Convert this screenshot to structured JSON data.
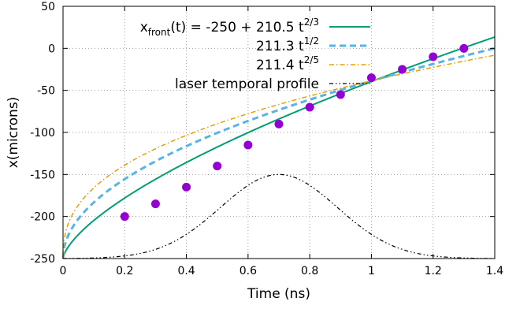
{
  "chart_data": {
    "type": "line",
    "xlabel": "Time (ns)",
    "ylabel": "x(microns)",
    "xlim": [
      0,
      1.4
    ],
    "ylim": [
      -250,
      50
    ],
    "xticks": [
      "0",
      "0.2",
      "0.4",
      "0.6",
      "0.8",
      "1",
      "1.2",
      "1.4"
    ],
    "yticks": [
      "-250",
      "-200",
      "-150",
      "-100",
      "-50",
      "0",
      "50"
    ],
    "grid": true,
    "legend_position": "top-left",
    "series": [
      {
        "name_parts": [
          "x",
          "front",
          "(t) = -250 + 210.5 t",
          "2/3",
          ""
        ],
        "kind": "line",
        "style": "solid",
        "color": "#009e73",
        "formula": "-250 + 210.5 t^(2/3)"
      },
      {
        "name_parts": [
          "",
          "",
          "211.3 t",
          "1/2",
          ""
        ],
        "kind": "line",
        "style": "dashed",
        "color": "#56b4e9",
        "formula": "-250 + 211.3 t^(1/2)"
      },
      {
        "name_parts": [
          "",
          "",
          "211.4 t",
          "2/5",
          ""
        ],
        "kind": "line",
        "style": "dash-dot",
        "color": "#e69f00",
        "formula": "-250 + 211.4 t^(2/5)"
      },
      {
        "name": "laser temporal profile",
        "kind": "line",
        "style": "dash-dot-dot",
        "color": "#000000",
        "profile": {
          "center": 0.7,
          "peak": -150,
          "base": -250,
          "sigma": 0.19
        }
      },
      {
        "kind": "scatter",
        "color": "#9400d3",
        "x": [
          0.2,
          0.3,
          0.4,
          0.5,
          0.6,
          0.7,
          0.8,
          0.9,
          1.0,
          1.1,
          1.2,
          1.3
        ],
        "y": [
          -200,
          -185,
          -165,
          -140,
          -115,
          -90,
          -70,
          -55,
          -35,
          -25,
          -10,
          0
        ]
      }
    ]
  }
}
